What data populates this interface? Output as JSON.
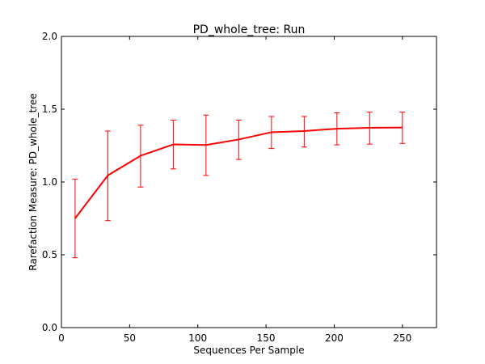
{
  "chart_data": {
    "type": "line",
    "title": "PD_whole_tree: Run",
    "xlabel": "Sequences Per Sample",
    "ylabel": "Rarefaction Measure: PD_whole_tree",
    "xlim": [
      0,
      275
    ],
    "ylim": [
      0.0,
      2.0
    ],
    "x_ticks": [
      0,
      50,
      100,
      150,
      200,
      250
    ],
    "x_tick_labels": [
      "0",
      "50",
      "100",
      "150",
      "200",
      "250"
    ],
    "y_ticks": [
      0.0,
      0.5,
      1.0,
      1.5,
      2.0
    ],
    "y_tick_labels": [
      "0.0",
      "0.5",
      "1.0",
      "1.5",
      "2.0"
    ],
    "grid": false,
    "series": [
      {
        "color": "#ff0000",
        "x": [
          10,
          34,
          58,
          82,
          106,
          130,
          154,
          178,
          202,
          226,
          250
        ],
        "y": [
          0.75,
          1.045,
          1.18,
          1.258,
          1.254,
          1.292,
          1.342,
          1.35,
          1.366,
          1.372,
          1.374
        ],
        "err_low": [
          0.48,
          0.735,
          0.965,
          1.09,
          1.045,
          1.155,
          1.23,
          1.24,
          1.255,
          1.26,
          1.265
        ],
        "err_high": [
          1.02,
          1.35,
          1.39,
          1.425,
          1.46,
          1.425,
          1.45,
          1.45,
          1.475,
          1.48,
          1.48
        ]
      }
    ]
  }
}
